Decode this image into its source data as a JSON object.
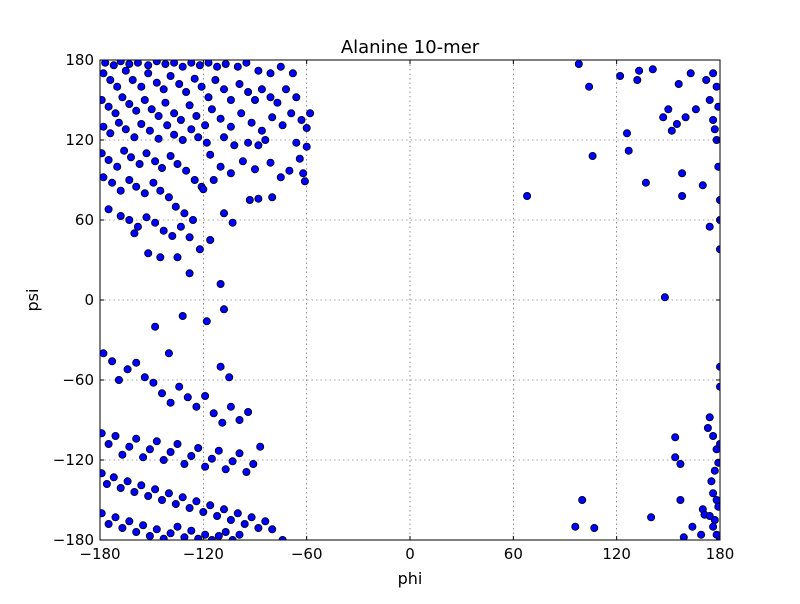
{
  "chart_data": {
    "type": "scatter",
    "title": "Alanine 10-mer",
    "xlabel": "phi",
    "ylabel": "psi",
    "xlim": [
      -180,
      180
    ],
    "ylim": [
      -180,
      180
    ],
    "xticks": [
      "−180",
      "−120",
      "−60",
      "0",
      "60",
      "120",
      "180"
    ],
    "yticks": [
      "180",
      "120",
      "60",
      "0",
      "−60",
      "−120",
      "−180"
    ],
    "grid": true,
    "marker_color": "#0000ff",
    "marker_edge": "#000000",
    "series": [
      {
        "points": [
          [
            -177,
            178
          ],
          [
            -172,
            176
          ],
          [
            -168,
            179
          ],
          [
            -163,
            177
          ],
          [
            -158,
            178
          ],
          [
            -152,
            176
          ],
          [
            -147,
            179
          ],
          [
            -142,
            177
          ],
          [
            -137,
            178
          ],
          [
            -132,
            175
          ],
          [
            -127,
            178
          ],
          [
            -122,
            176
          ],
          [
            -117,
            178
          ],
          [
            -112,
            175
          ],
          [
            -107,
            177
          ],
          [
            -100,
            175
          ],
          [
            -95,
            178
          ],
          [
            -88,
            172
          ],
          [
            -81,
            170
          ],
          [
            -75,
            175
          ],
          [
            -68,
            170
          ],
          [
            -178,
            170
          ],
          [
            -174,
            165
          ],
          [
            -170,
            160
          ],
          [
            -165,
            172
          ],
          [
            -161,
            165
          ],
          [
            -156,
            160
          ],
          [
            -152,
            170
          ],
          [
            -147,
            163
          ],
          [
            -143,
            158
          ],
          [
            -139,
            168
          ],
          [
            -134,
            162
          ],
          [
            -130,
            156
          ],
          [
            -125,
            166
          ],
          [
            -121,
            160
          ],
          [
            -117,
            152
          ],
          [
            -113,
            165
          ],
          [
            -108,
            158
          ],
          [
            -104,
            150
          ],
          [
            -99,
            162
          ],
          [
            -94,
            156
          ],
          [
            -90,
            150
          ],
          [
            -86,
            158
          ],
          [
            -81,
            152
          ],
          [
            -77,
            148
          ],
          [
            -72,
            158
          ],
          [
            -66,
            152
          ],
          [
            -179,
            150
          ],
          [
            -175,
            145
          ],
          [
            -171,
            140
          ],
          [
            -167,
            152
          ],
          [
            -163,
            147
          ],
          [
            -159,
            142
          ],
          [
            -154,
            150
          ],
          [
            -150,
            143
          ],
          [
            -146,
            138
          ],
          [
            -142,
            148
          ],
          [
            -137,
            140
          ],
          [
            -133,
            135
          ],
          [
            -128,
            146
          ],
          [
            -124,
            138
          ],
          [
            -119,
            131
          ],
          [
            -115,
            143
          ],
          [
            -110,
            136
          ],
          [
            -104,
            130
          ],
          [
            -98,
            140
          ],
          [
            -92,
            133
          ],
          [
            -86,
            127
          ],
          [
            -80,
            137
          ],
          [
            -74,
            131
          ],
          [
            -69,
            140
          ],
          [
            -63,
            135
          ],
          [
            -58,
            140
          ],
          [
            -60,
            129
          ],
          [
            -178,
            130
          ],
          [
            -174,
            125
          ],
          [
            -169,
            133
          ],
          [
            -165,
            128
          ],
          [
            -160,
            122
          ],
          [
            -156,
            132
          ],
          [
            -151,
            127
          ],
          [
            -146,
            121
          ],
          [
            -141,
            131
          ],
          [
            -137,
            124
          ],
          [
            -132,
            120
          ],
          [
            -127,
            128
          ],
          [
            -123,
            122
          ],
          [
            -118,
            118
          ],
          [
            -108,
            122
          ],
          [
            -102,
            116
          ],
          [
            -94,
            118
          ],
          [
            -88,
            116
          ],
          [
            -84,
            120
          ],
          [
            -66,
            118
          ],
          [
            -60,
            115
          ],
          [
            -179,
            110
          ],
          [
            -175,
            105
          ],
          [
            -170,
            100
          ],
          [
            -166,
            112
          ],
          [
            -162,
            107
          ],
          [
            -157,
            102
          ],
          [
            -153,
            110
          ],
          [
            -148,
            104
          ],
          [
            -144,
            99
          ],
          [
            -139,
            108
          ],
          [
            -135,
            102
          ],
          [
            -130,
            97
          ],
          [
            -125,
            90
          ],
          [
            -121,
            85
          ],
          [
            -116,
            109
          ],
          [
            -110,
            100
          ],
          [
            -104,
            95
          ],
          [
            -97,
            104
          ],
          [
            -90,
            98
          ],
          [
            -81,
            103
          ],
          [
            -75,
            92
          ],
          [
            -70,
            97
          ],
          [
            -64,
            106
          ],
          [
            -62,
            95
          ],
          [
            -61,
            89
          ],
          [
            -178,
            92
          ],
          [
            -173,
            88
          ],
          [
            -168,
            82
          ],
          [
            -163,
            90
          ],
          [
            -159,
            85
          ],
          [
            -154,
            80
          ],
          [
            -149,
            88
          ],
          [
            -145,
            82
          ],
          [
            -140,
            77
          ],
          [
            -136,
            70
          ],
          [
            -131,
            65
          ],
          [
            -126,
            60
          ],
          [
            -120,
            83
          ],
          [
            -114,
            90
          ],
          [
            -108,
            65
          ],
          [
            -103,
            58
          ],
          [
            -93,
            75
          ],
          [
            -88,
            76
          ],
          [
            -80,
            77
          ],
          [
            -175,
            68
          ],
          [
            -168,
            63
          ],
          [
            -163,
            60
          ],
          [
            -158,
            55
          ],
          [
            -153,
            62
          ],
          [
            -148,
            58
          ],
          [
            -143,
            52
          ],
          [
            -138,
            48
          ],
          [
            -133,
            55
          ],
          [
            -128,
            47
          ],
          [
            -122,
            38
          ],
          [
            -160,
            50
          ],
          [
            -152,
            35
          ],
          [
            -145,
            32
          ],
          [
            -135,
            32
          ],
          [
            -128,
            20
          ],
          [
            -116,
            45
          ],
          [
            -110,
            12
          ],
          [
            -108,
            -7
          ],
          [
            -148,
            -20
          ],
          [
            -140,
            -40
          ],
          [
            -132,
            -12
          ],
          [
            -118,
            -16
          ],
          [
            -110,
            -50
          ],
          [
            -105,
            -58
          ],
          [
            -178,
            -40
          ],
          [
            -173,
            -46
          ],
          [
            -169,
            -60
          ],
          [
            -164,
            -52
          ],
          [
            -159,
            -47
          ],
          [
            -154,
            -58
          ],
          [
            -149,
            -62
          ],
          [
            -144,
            -70
          ],
          [
            -139,
            -77
          ],
          [
            -134,
            -65
          ],
          [
            -129,
            -73
          ],
          [
            -124,
            -80
          ],
          [
            -119,
            -72
          ],
          [
            -114,
            -85
          ],
          [
            -109,
            -92
          ],
          [
            -104,
            -80
          ],
          [
            -99,
            -90
          ],
          [
            -94,
            -84
          ],
          [
            -179,
            -100
          ],
          [
            -175,
            -108
          ],
          [
            -171,
            -102
          ],
          [
            -167,
            -116
          ],
          [
            -163,
            -110
          ],
          [
            -159,
            -104
          ],
          [
            -155,
            -118
          ],
          [
            -151,
            -112
          ],
          [
            -147,
            -106
          ],
          [
            -143,
            -120
          ],
          [
            -139,
            -114
          ],
          [
            -135,
            -108
          ],
          [
            -131,
            -123
          ],
          [
            -127,
            -117
          ],
          [
            -123,
            -111
          ],
          [
            -119,
            -125
          ],
          [
            -115,
            -119
          ],
          [
            -111,
            -113
          ],
          [
            -107,
            -127
          ],
          [
            -103,
            -121
          ],
          [
            -99,
            -115
          ],
          [
            -95,
            -129
          ],
          [
            -91,
            -123
          ],
          [
            -87,
            -110
          ],
          [
            -179,
            -130
          ],
          [
            -176,
            -138
          ],
          [
            -172,
            -133
          ],
          [
            -168,
            -141
          ],
          [
            -164,
            -136
          ],
          [
            -160,
            -144
          ],
          [
            -156,
            -139
          ],
          [
            -152,
            -147
          ],
          [
            -148,
            -142
          ],
          [
            -144,
            -150
          ],
          [
            -140,
            -145
          ],
          [
            -136,
            -153
          ],
          [
            -132,
            -148
          ],
          [
            -128,
            -156
          ],
          [
            -124,
            -151
          ],
          [
            -120,
            -159
          ],
          [
            -116,
            -154
          ],
          [
            -112,
            -162
          ],
          [
            -108,
            -157
          ],
          [
            -104,
            -165
          ],
          [
            -100,
            -160
          ],
          [
            -96,
            -168
          ],
          [
            -92,
            -163
          ],
          [
            -88,
            -171
          ],
          [
            -84,
            -166
          ],
          [
            -80,
            -172
          ],
          [
            -74,
            -180
          ],
          [
            -179,
            -160
          ],
          [
            -175,
            -168
          ],
          [
            -171,
            -163
          ],
          [
            -167,
            -171
          ],
          [
            -163,
            -166
          ],
          [
            -159,
            -174
          ],
          [
            -155,
            -169
          ],
          [
            -151,
            -177
          ],
          [
            -147,
            -172
          ],
          [
            -143,
            -179
          ],
          [
            -139,
            -175
          ],
          [
            -135,
            -170
          ],
          [
            -131,
            -178
          ],
          [
            -127,
            -173
          ],
          [
            -123,
            -179
          ],
          [
            -119,
            -176
          ],
          [
            -115,
            -180
          ],
          [
            -111,
            -177
          ],
          [
            -107,
            -174
          ],
          [
            -103,
            -180
          ],
          [
            -99,
            -176
          ],
          [
            68,
            78
          ],
          [
            98,
            177
          ],
          [
            104,
            160
          ],
          [
            106,
            108
          ],
          [
            122,
            168
          ],
          [
            126,
            125
          ],
          [
            127,
            112
          ],
          [
            132,
            165
          ],
          [
            133,
            172
          ],
          [
            137,
            88
          ],
          [
            141,
            173
          ],
          [
            147,
            137
          ],
          [
            148,
            2
          ],
          [
            150,
            143
          ],
          [
            152,
            127
          ],
          [
            155,
            132
          ],
          [
            156,
            162
          ],
          [
            158,
            95
          ],
          [
            158,
            78
          ],
          [
            160,
            137
          ],
          [
            163,
            170
          ],
          [
            166,
            143
          ],
          [
            170,
            86
          ],
          [
            172,
            165
          ],
          [
            174,
            150
          ],
          [
            176,
            135
          ],
          [
            178,
            120
          ],
          [
            179,
            100
          ],
          [
            180,
            75
          ],
          [
            180,
            60
          ],
          [
            174,
            55
          ],
          [
            176,
            170
          ],
          [
            178,
            160
          ],
          [
            179,
            145
          ],
          [
            177,
            128
          ],
          [
            180,
            38
          ],
          [
            100,
            -150
          ],
          [
            96,
            -170
          ],
          [
            107,
            -171
          ],
          [
            140,
            -163
          ],
          [
            154,
            -103
          ],
          [
            154,
            -118
          ],
          [
            157,
            -123
          ],
          [
            157,
            -150
          ],
          [
            159,
            -178
          ],
          [
            164,
            -170
          ],
          [
            169,
            -176
          ],
          [
            170,
            -157
          ],
          [
            171,
            -161
          ],
          [
            173,
            -96
          ],
          [
            174,
            -88
          ],
          [
            176,
            -102
          ],
          [
            178,
            -112
          ],
          [
            180,
            -108
          ],
          [
            179,
            -122
          ],
          [
            177,
            -128
          ],
          [
            175,
            -136
          ],
          [
            176,
            -145
          ],
          [
            178,
            -150
          ],
          [
            179,
            -155
          ],
          [
            177,
            -165
          ],
          [
            176,
            -170
          ],
          [
            178,
            -176
          ],
          [
            180,
            -180
          ],
          [
            180,
            -65
          ],
          [
            180,
            -50
          ],
          [
            174,
            -162
          ]
        ]
      }
    ]
  }
}
